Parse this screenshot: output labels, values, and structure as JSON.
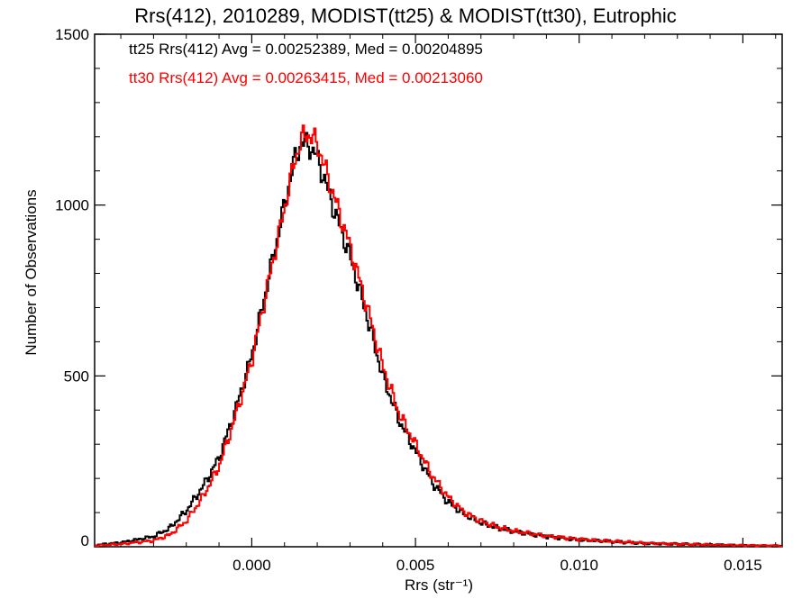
{
  "chart_data": {
    "type": "line",
    "style": "step-histogram",
    "title": "Rrs(412), 2010289, MODIST(tt25) & MODIST(tt30), Eutrophic",
    "xlabel": "Rrs (str⁻¹)",
    "ylabel": "Number of Observations",
    "xlim": [
      -0.0048,
      0.0162
    ],
    "ylim": [
      0,
      1500
    ],
    "xticks": [
      0.0,
      0.005,
      0.01,
      0.015
    ],
    "xtick_labels": [
      "0.000",
      "0.005",
      "0.010",
      "0.015"
    ],
    "yticks": [
      0,
      500,
      1000,
      1500
    ],
    "ytick_labels": [
      "0",
      "500",
      "1000",
      "1500"
    ],
    "grid": false,
    "legend_position": "top-left",
    "series": [
      {
        "name": "tt25",
        "color": "#000000",
        "legend_text": "tt25 Rrs(412) Avg = 0.00252389, Med = 0.00204895",
        "x": [
          -0.0048,
          -0.004,
          -0.003,
          -0.0025,
          -0.002,
          -0.0015,
          -0.001,
          -0.0005,
          0.0,
          0.0005,
          0.001,
          0.0013,
          0.0015,
          0.0017,
          0.002,
          0.0025,
          0.003,
          0.0035,
          0.004,
          0.0045,
          0.005,
          0.0055,
          0.006,
          0.0065,
          0.007,
          0.0075,
          0.008,
          0.009,
          0.01,
          0.011,
          0.012,
          0.013,
          0.014,
          0.015,
          0.016
        ],
        "y": [
          5,
          12,
          30,
          55,
          105,
          175,
          260,
          400,
          560,
          780,
          1000,
          1130,
          1180,
          1180,
          1140,
          990,
          850,
          680,
          500,
          370,
          280,
          190,
          130,
          95,
          70,
          55,
          45,
          30,
          20,
          15,
          10,
          8,
          6,
          4,
          3
        ]
      },
      {
        "name": "tt30",
        "color": "#ff0000",
        "legend_text": "tt30 Rrs(412) Avg = 0.00263415, Med = 0.00213060",
        "x": [
          -0.0048,
          -0.004,
          -0.003,
          -0.0025,
          -0.002,
          -0.0015,
          -0.001,
          -0.0005,
          0.0,
          0.0005,
          0.001,
          0.0013,
          0.0015,
          0.0017,
          0.002,
          0.0025,
          0.003,
          0.0035,
          0.004,
          0.0045,
          0.005,
          0.0055,
          0.006,
          0.0065,
          0.007,
          0.0075,
          0.008,
          0.009,
          0.01,
          0.011,
          0.012,
          0.013,
          0.014,
          0.015,
          0.016
        ],
        "y": [
          3,
          8,
          18,
          35,
          75,
          145,
          235,
          380,
          545,
          770,
          990,
          1125,
          1190,
          1210,
          1180,
          1030,
          880,
          710,
          530,
          390,
          300,
          210,
          145,
          100,
          75,
          58,
          46,
          32,
          22,
          16,
          11,
          8,
          6,
          4,
          3
        ]
      }
    ]
  }
}
